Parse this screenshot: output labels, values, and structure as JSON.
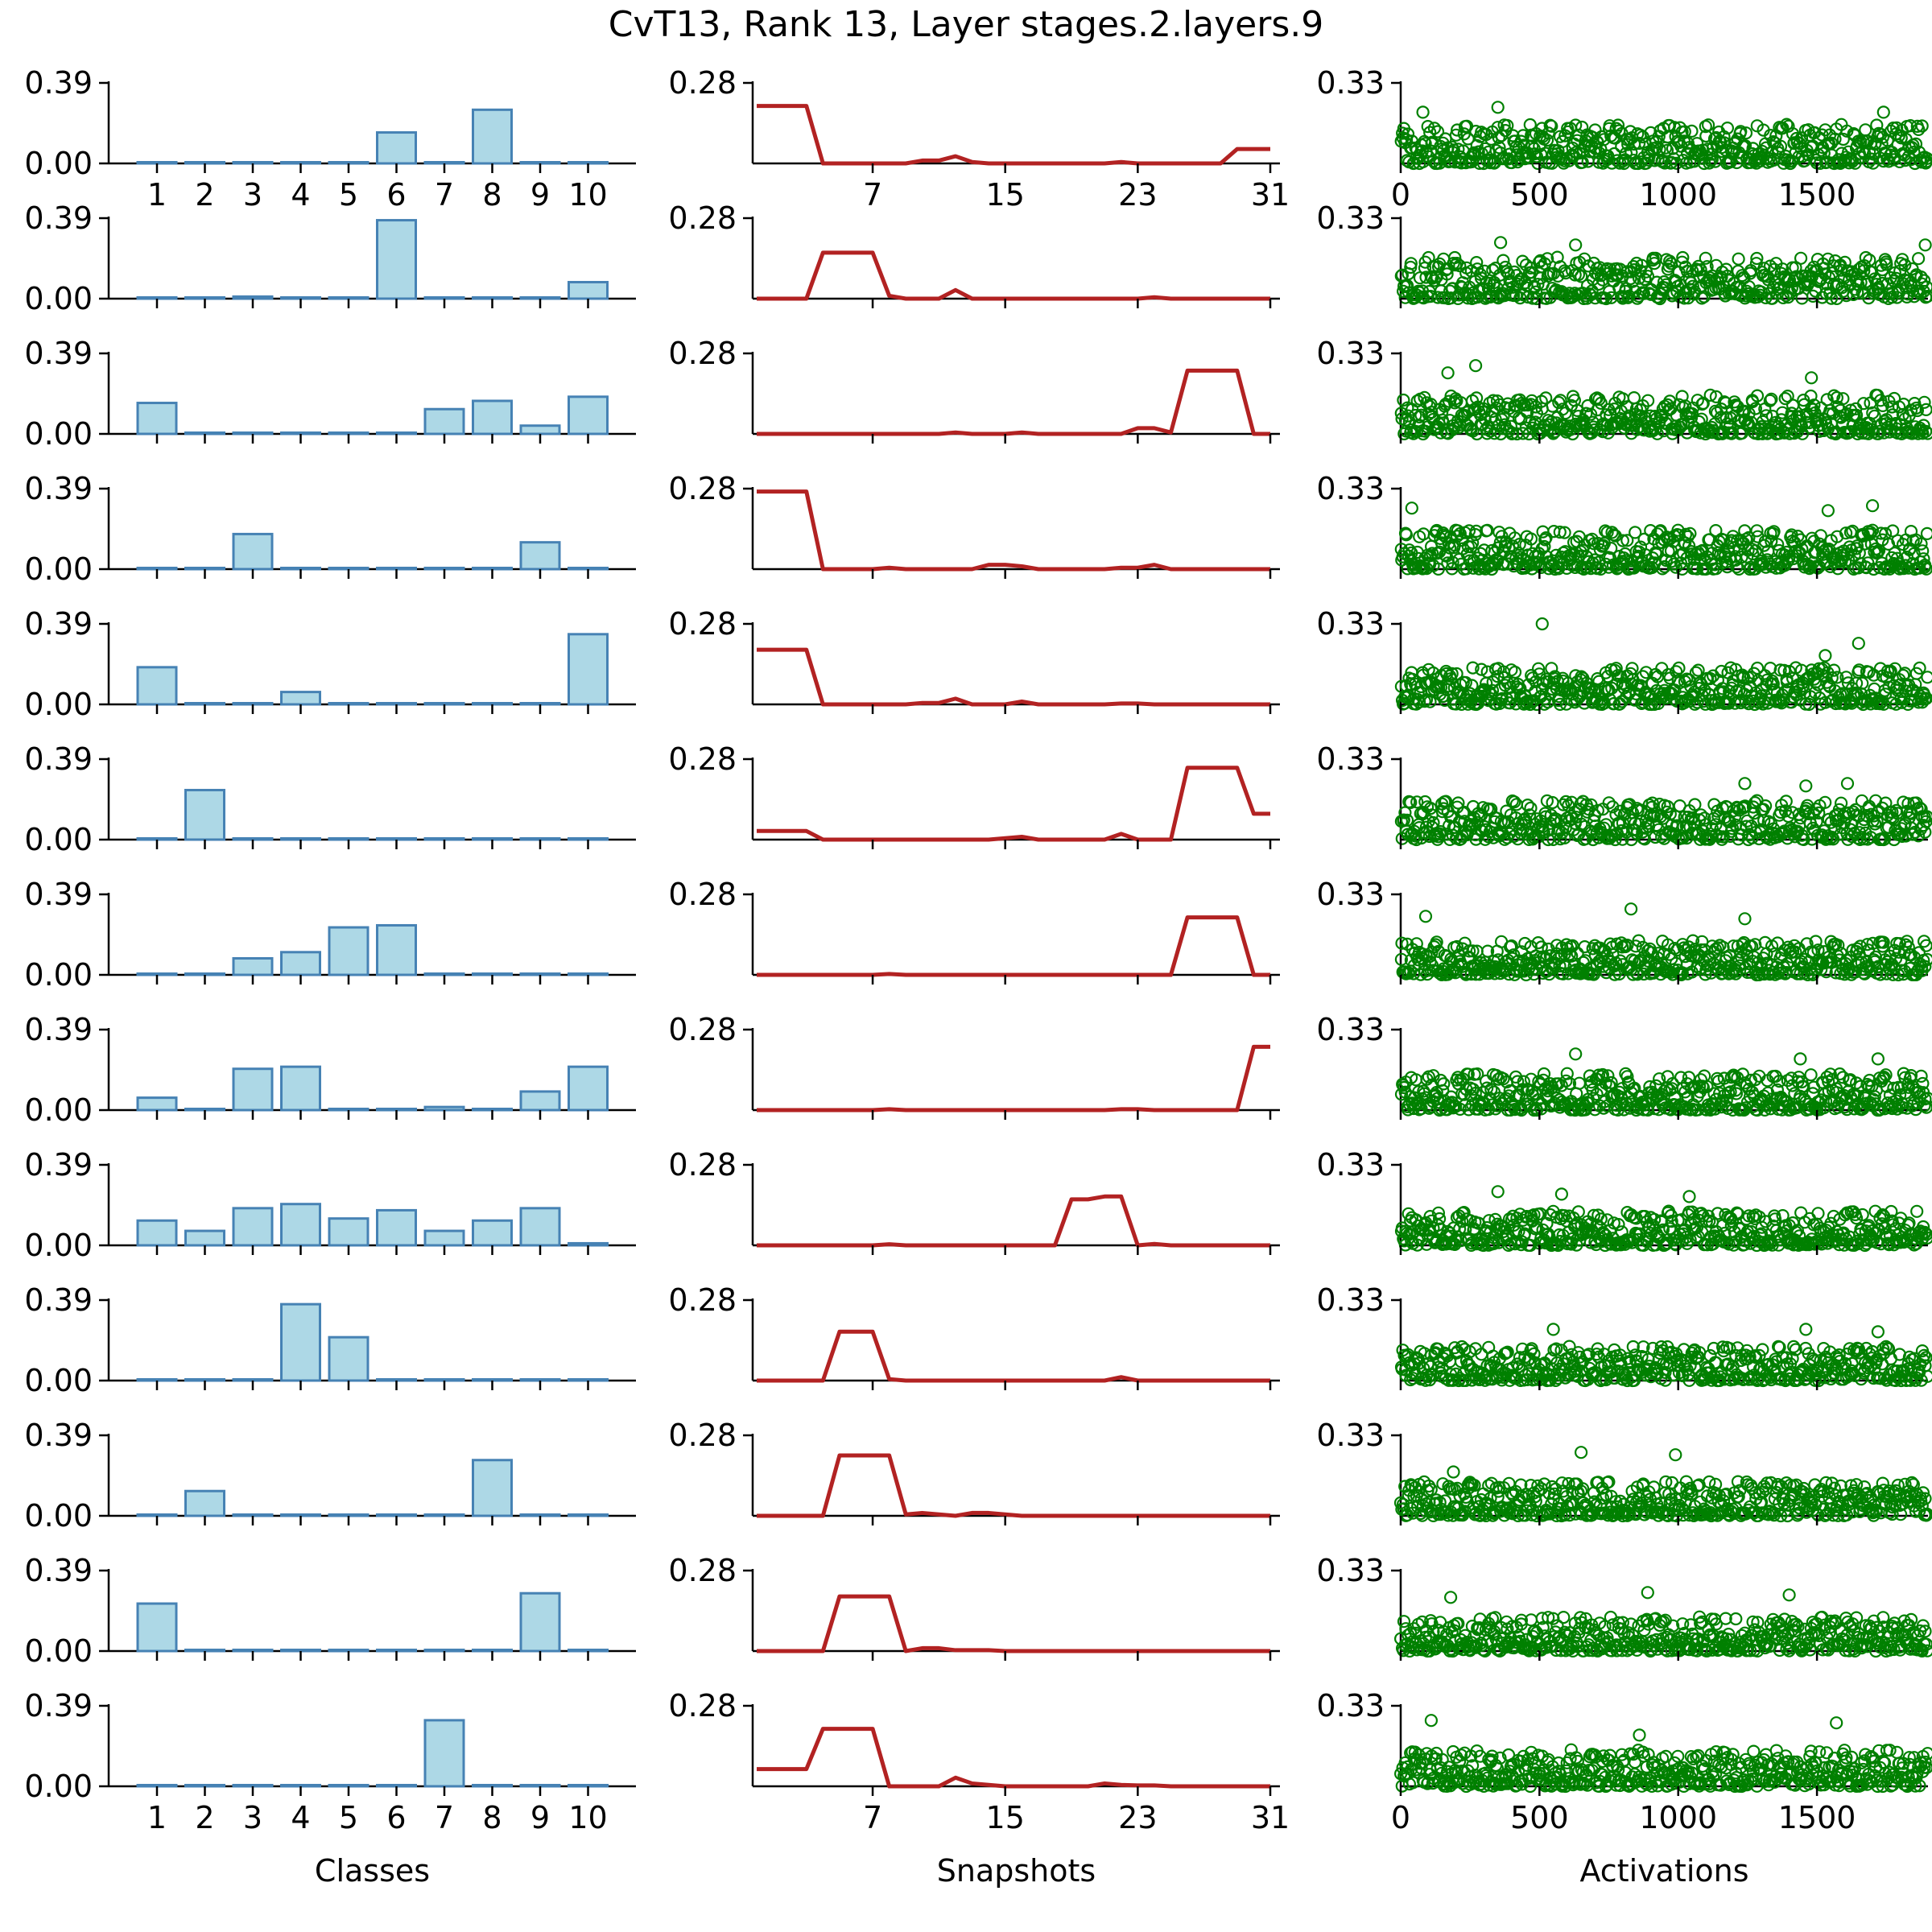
{
  "figure": {
    "title": "CvT13, Rank 13, Layer stages.2.layers.9",
    "colors": {
      "bar_fill": "#add8e6",
      "bar_edge": "#4682b4",
      "line": "#b22222",
      "scatter": "#008000",
      "axis": "#000000"
    }
  },
  "chart_data": [
    {
      "type": "bar",
      "panel": "classes",
      "xlabel": "Classes",
      "categories": [
        "1",
        "2",
        "3",
        "4",
        "5",
        "6",
        "7",
        "8",
        "9",
        "10"
      ],
      "ytick_labels": [
        "0.00",
        "0.39"
      ],
      "ylim": [
        0,
        0.39
      ],
      "series": [
        {
          "name": "row 1",
          "values": [
            0,
            0,
            0.002,
            0,
            0,
            0.15,
            0,
            0.26,
            0,
            0
          ]
        },
        {
          "name": "row 2",
          "values": [
            0,
            0,
            0.01,
            0,
            0,
            0.38,
            0,
            0,
            0,
            0.08
          ]
        },
        {
          "name": "row 3",
          "values": [
            0.15,
            0,
            0.003,
            0,
            0,
            0,
            0.12,
            0.16,
            0.04,
            0.18
          ]
        },
        {
          "name": "row 4",
          "values": [
            0,
            0,
            0.17,
            0,
            0,
            0,
            0,
            0,
            0.13,
            0
          ]
        },
        {
          "name": "row 5",
          "values": [
            0.18,
            0,
            0,
            0.06,
            0,
            0,
            0,
            0,
            0,
            0.34
          ]
        },
        {
          "name": "row 6",
          "values": [
            0,
            0.24,
            0,
            0,
            0,
            0,
            0,
            0,
            0,
            0
          ]
        },
        {
          "name": "row 7",
          "values": [
            0,
            0,
            0.08,
            0.11,
            0.23,
            0.24,
            0,
            0,
            0,
            0
          ]
        },
        {
          "name": "row 8",
          "values": [
            0.06,
            0,
            0.2,
            0.21,
            0,
            0,
            0.015,
            0,
            0.09,
            0.21
          ]
        },
        {
          "name": "row 9",
          "values": [
            0.12,
            0.07,
            0.18,
            0.2,
            0.13,
            0.17,
            0.07,
            0.12,
            0.18,
            0.01
          ]
        },
        {
          "name": "row 10",
          "values": [
            0,
            0,
            0,
            0,
            0,
            0,
            0,
            0,
            0,
            0
          ],
          "override": [
            0,
            0,
            0,
            0.37,
            0.21,
            0,
            0,
            0,
            0,
            0
          ]
        },
        {
          "name": "row 11",
          "values": [
            0,
            0.12,
            0,
            0,
            0,
            0,
            0,
            0.27,
            0,
            0
          ]
        },
        {
          "name": "row 12",
          "values": [
            0.23,
            0,
            0,
            0,
            0,
            0,
            0,
            0,
            0.28,
            0
          ]
        },
        {
          "name": "row 13",
          "values": [
            0,
            0,
            0,
            0,
            0,
            0,
            0.32,
            0,
            0,
            0
          ]
        }
      ]
    },
    {
      "type": "line",
      "panel": "snapshots",
      "xlabel": "Snapshots",
      "xticks": [
        7,
        15,
        23,
        31
      ],
      "xlim": [
        0,
        31
      ],
      "ytick_labels": [
        "0.28"
      ],
      "ymax_tick": 0.28,
      "ylim": [
        0,
        0.28
      ],
      "series": [
        {
          "name": "row 1",
          "values": [
            0.2,
            0.2,
            0.2,
            0.2,
            0,
            0,
            0,
            0,
            0,
            0,
            0.01,
            0.01,
            0.025,
            0.005,
            0,
            0,
            0,
            0,
            0,
            0,
            0,
            0,
            0.005,
            0,
            0,
            0,
            0,
            0,
            0,
            0.05,
            0.05,
            0.05
          ]
        },
        {
          "name": "row 2",
          "values": [
            0,
            0,
            0,
            0,
            0.16,
            0.16,
            0.16,
            0.16,
            0.01,
            0,
            0,
            0,
            0.03,
            0,
            0,
            0,
            0,
            0,
            0,
            0,
            0,
            0,
            0,
            0,
            0.005,
            0,
            0,
            0,
            0,
            0,
            0,
            0
          ]
        },
        {
          "name": "row 3",
          "values": [
            0,
            0,
            0,
            0,
            0,
            0,
            0,
            0,
            0,
            0,
            0,
            0,
            0.005,
            0,
            0,
            0,
            0.005,
            0,
            0,
            0,
            0,
            0,
            0,
            0.02,
            0.02,
            0.005,
            0.22,
            0.22,
            0.22,
            0.22,
            0,
            0
          ]
        },
        {
          "name": "row 4",
          "values": [
            0.27,
            0.27,
            0.27,
            0.27,
            0,
            0,
            0,
            0,
            0.005,
            0,
            0,
            0,
            0,
            0,
            0.015,
            0.015,
            0.01,
            0,
            0,
            0,
            0,
            0,
            0.005,
            0.005,
            0.015,
            0,
            0,
            0,
            0,
            0,
            0,
            0
          ]
        },
        {
          "name": "row 5",
          "values": [
            0.19,
            0.19,
            0.19,
            0.19,
            0,
            0,
            0,
            0,
            0,
            0,
            0.005,
            0.005,
            0.02,
            0,
            0,
            0,
            0.01,
            0,
            0,
            0,
            0,
            0,
            0.003,
            0.003,
            0,
            0,
            0,
            0,
            0,
            0,
            0,
            0
          ]
        },
        {
          "name": "row 6",
          "values": [
            0.03,
            0.03,
            0.03,
            0.03,
            0,
            0,
            0,
            0,
            0,
            0,
            0,
            0,
            0,
            0,
            0,
            0.005,
            0.01,
            0,
            0,
            0,
            0,
            0,
            0.02,
            0,
            0,
            0,
            0.25,
            0.25,
            0.25,
            0.25,
            0.09,
            0.09
          ]
        },
        {
          "name": "row 7",
          "values": [
            0,
            0,
            0,
            0,
            0,
            0,
            0,
            0,
            0.003,
            0,
            0,
            0,
            0,
            0,
            0,
            0,
            0,
            0,
            0,
            0,
            0,
            0,
            0,
            0,
            0,
            0,
            0.2,
            0.2,
            0.2,
            0.2,
            0,
            0
          ]
        },
        {
          "name": "row 8",
          "values": [
            0,
            0,
            0,
            0,
            0,
            0,
            0,
            0,
            0.003,
            0,
            0,
            0,
            0,
            0,
            0,
            0,
            0,
            0,
            0,
            0,
            0,
            0,
            0.003,
            0.003,
            0,
            0,
            0,
            0,
            0,
            0,
            0.22,
            0.22
          ]
        },
        {
          "name": "row 9",
          "values": [
            0,
            0,
            0,
            0,
            0,
            0,
            0,
            0,
            0.004,
            0,
            0,
            0,
            0,
            0,
            0,
            0,
            0,
            0,
            0,
            0.16,
            0.16,
            0.17,
            0.17,
            0,
            0.005,
            0,
            0,
            0,
            0,
            0,
            0,
            0
          ]
        },
        {
          "name": "row 10",
          "values": [
            0,
            0,
            0,
            0,
            0,
            0.17,
            0.17,
            0.17,
            0.005,
            0,
            0,
            0,
            0,
            0,
            0,
            0,
            0,
            0,
            0,
            0,
            0,
            0,
            0.012,
            0,
            0,
            0,
            0,
            0,
            0,
            0,
            0,
            0
          ]
        },
        {
          "name": "row 11",
          "values": [
            0,
            0,
            0,
            0,
            0,
            0.21,
            0.21,
            0.21,
            0.21,
            0.005,
            0.01,
            0.005,
            0,
            0.01,
            0.01,
            0.005,
            0,
            0,
            0,
            0,
            0,
            0,
            0,
            0,
            0,
            0,
            0,
            0,
            0,
            0,
            0,
            0
          ]
        },
        {
          "name": "row 12",
          "values": [
            0,
            0,
            0,
            0,
            0,
            0.19,
            0.19,
            0.19,
            0.19,
            0,
            0.01,
            0.01,
            0.003,
            0.003,
            0.003,
            0,
            0,
            0,
            0,
            0,
            0,
            0,
            0,
            0,
            0,
            0,
            0,
            0,
            0,
            0,
            0,
            0
          ]
        },
        {
          "name": "row 13",
          "values": [
            0.06,
            0.06,
            0.06,
            0.06,
            0.2,
            0.2,
            0.2,
            0.2,
            0,
            0,
            0,
            0,
            0.03,
            0.01,
            0.005,
            0,
            0,
            0,
            0,
            0,
            0,
            0.01,
            0.005,
            0.003,
            0.003,
            0,
            0,
            0,
            0,
            0,
            0,
            0
          ]
        }
      ]
    },
    {
      "type": "scatter",
      "panel": "activations",
      "xlabel": "Activations",
      "xticks": [
        0,
        500,
        1000,
        1500
      ],
      "xlim": [
        0,
        1900
      ],
      "n_points": 1900,
      "ytick_labels": [
        "0.33"
      ],
      "ymax_tick": 0.33,
      "ylim": [
        0,
        0.33
      ],
      "series": [
        {
          "name": "row 1",
          "typical_max": 0.16,
          "outliers": [
            [
              80,
              0.21
            ],
            [
              350,
              0.23
            ],
            [
              1740,
              0.21
            ]
          ]
        },
        {
          "name": "row 2",
          "typical_max": 0.17,
          "outliers": [
            [
              360,
              0.23
            ],
            [
              630,
              0.22
            ],
            [
              1890,
              0.22
            ]
          ]
        },
        {
          "name": "row 3",
          "typical_max": 0.16,
          "outliers": [
            [
              270,
              0.28
            ],
            [
              170,
              0.25
            ],
            [
              1480,
              0.23
            ]
          ]
        },
        {
          "name": "row 4",
          "typical_max": 0.16,
          "outliers": [
            [
              40,
              0.25
            ],
            [
              1540,
              0.24
            ],
            [
              1700,
              0.26
            ]
          ]
        },
        {
          "name": "row 5",
          "typical_max": 0.15,
          "outliers": [
            [
              510,
              0.33
            ],
            [
              1650,
              0.25
            ],
            [
              1530,
              0.2
            ]
          ]
        },
        {
          "name": "row 6",
          "typical_max": 0.16,
          "outliers": [
            [
              1240,
              0.23
            ],
            [
              1610,
              0.23
            ],
            [
              1460,
              0.22
            ]
          ]
        },
        {
          "name": "row 7",
          "typical_max": 0.14,
          "outliers": [
            [
              90,
              0.24
            ],
            [
              830,
              0.27
            ],
            [
              1240,
              0.23
            ]
          ]
        },
        {
          "name": "row 8",
          "typical_max": 0.15,
          "outliers": [
            [
              630,
              0.23
            ],
            [
              1440,
              0.21
            ],
            [
              1720,
              0.21
            ]
          ]
        },
        {
          "name": "row 9",
          "typical_max": 0.14,
          "outliers": [
            [
              350,
              0.22
            ],
            [
              580,
              0.21
            ],
            [
              1040,
              0.2
            ]
          ]
        },
        {
          "name": "row 10",
          "typical_max": 0.14,
          "outliers": [
            [
              550,
              0.21
            ],
            [
              1460,
              0.21
            ],
            [
              1720,
              0.2
            ]
          ]
        },
        {
          "name": "row 11",
          "typical_max": 0.14,
          "outliers": [
            [
              650,
              0.26
            ],
            [
              990,
              0.25
            ],
            [
              190,
              0.18
            ]
          ]
        },
        {
          "name": "row 12",
          "typical_max": 0.14,
          "outliers": [
            [
              180,
              0.22
            ],
            [
              890,
              0.24
            ],
            [
              1400,
              0.23
            ]
          ]
        },
        {
          "name": "row 13",
          "typical_max": 0.15,
          "outliers": [
            [
              110,
              0.27
            ],
            [
              1570,
              0.26
            ],
            [
              860,
              0.21
            ]
          ]
        }
      ]
    }
  ]
}
